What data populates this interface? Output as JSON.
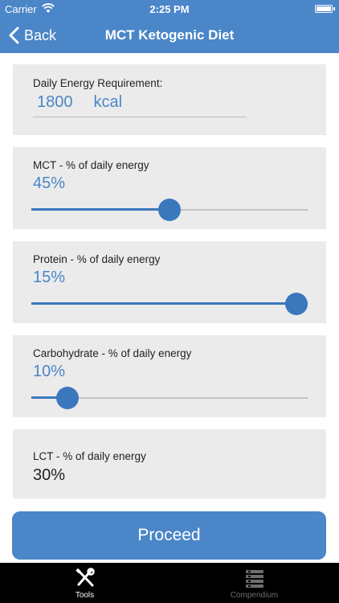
{
  "status_bar": {
    "carrier": "Carrier",
    "time": "2:25 PM"
  },
  "nav": {
    "back_label": "Back",
    "title": "MCT Ketogenic Diet"
  },
  "energy": {
    "label": "Daily Energy Requirement:",
    "value": "1800",
    "unit": "kcal"
  },
  "mct": {
    "label": "MCT - % of daily energy",
    "value_text": "45%",
    "slider_fraction": 0.5
  },
  "protein": {
    "label": "Protein - % of daily energy",
    "value_text": "15%",
    "slider_fraction": 1.0
  },
  "carbohydrate": {
    "label": "Carbohydrate - % of daily energy",
    "value_text": "10%",
    "slider_fraction": 0.13
  },
  "lct": {
    "label": "LCT - % of daily energy",
    "value_text": "30%"
  },
  "proceed_label": "Proceed",
  "tabs": [
    {
      "label": "Tools",
      "icon": "tools-icon",
      "active": true
    },
    {
      "label": "Compendium",
      "icon": "list-icon",
      "active": false
    }
  ],
  "colors": {
    "accent": "#4a86c8",
    "slider": "#3b77bd",
    "card_bg": "#ebebeb",
    "tabbar_bg": "#000000"
  }
}
